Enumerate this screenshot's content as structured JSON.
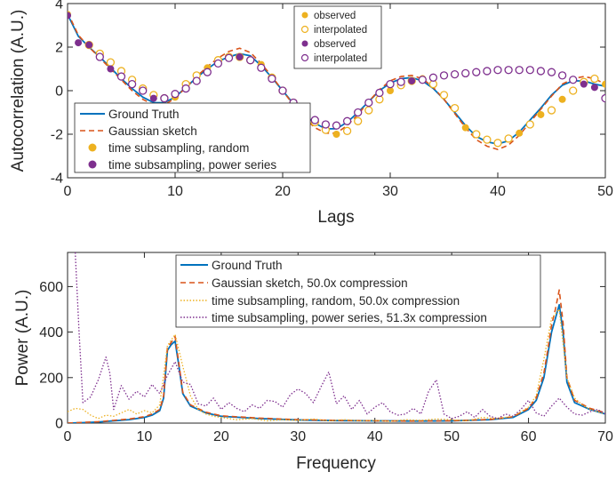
{
  "colors": {
    "ground_truth": "#0072BD",
    "gaussian": "#D95319",
    "random": "#EDB120",
    "power": "#7E2F8E"
  },
  "chart_data": [
    {
      "type": "line",
      "xlabel": "Lags",
      "ylabel": "Autocorrelation (A.U.)",
      "xlim": [
        0,
        50
      ],
      "ylim": [
        -4,
        4
      ],
      "xticks": [
        "0",
        "10",
        "20",
        "30",
        "40",
        "50"
      ],
      "yticks": [
        "-4",
        "-2",
        "0",
        "2",
        "4"
      ],
      "legend_main": {
        "placement": "bottom-left",
        "entries": [
          "Ground Truth",
          "Gaussian sketch",
          "time subsampling, random",
          "time subsampling, power series"
        ]
      },
      "legend_points": {
        "placement": "top-center",
        "entries": [
          "observed",
          "interpolated",
          "observed",
          "interpolated"
        ]
      },
      "series": [
        {
          "name": "Ground Truth",
          "style": "solid",
          "x": [
            0,
            1,
            2,
            3,
            4,
            5,
            6,
            7,
            8,
            9,
            10,
            11,
            12,
            13,
            14,
            15,
            16,
            17,
            18,
            19,
            20,
            21,
            22,
            23,
            24,
            25,
            26,
            27,
            28,
            29,
            30,
            31,
            32,
            33,
            34,
            35,
            36,
            37,
            38,
            39,
            40,
            41,
            42,
            43,
            44,
            45,
            46,
            47,
            48,
            49,
            50
          ],
          "y": [
            3.5,
            2.5,
            2.0,
            1.55,
            1.05,
            0.55,
            0.1,
            -0.3,
            -0.55,
            -0.55,
            -0.3,
            0.15,
            0.6,
            1.0,
            1.35,
            1.55,
            1.7,
            1.6,
            1.15,
            0.6,
            0.0,
            -0.6,
            -1.1,
            -1.5,
            -1.75,
            -1.75,
            -1.45,
            -1.0,
            -0.5,
            0.0,
            0.35,
            0.55,
            0.6,
            0.45,
            0.1,
            -0.4,
            -1.0,
            -1.6,
            -2.1,
            -2.35,
            -2.45,
            -2.3,
            -1.9,
            -1.35,
            -0.8,
            -0.2,
            0.25,
            0.45,
            0.45,
            0.3,
            0.2
          ]
        },
        {
          "name": "Gaussian sketch",
          "style": "dashed",
          "x": [
            0,
            1,
            2,
            3,
            4,
            5,
            6,
            7,
            8,
            9,
            10,
            11,
            12,
            13,
            14,
            15,
            16,
            17,
            18,
            19,
            20,
            21,
            22,
            23,
            24,
            25,
            26,
            27,
            28,
            29,
            30,
            31,
            32,
            33,
            34,
            35,
            36,
            37,
            38,
            39,
            40,
            41,
            42,
            43,
            44,
            45,
            46,
            47,
            48,
            49,
            50
          ],
          "y": [
            3.6,
            2.55,
            2.0,
            1.5,
            1.0,
            0.5,
            0.0,
            -0.4,
            -0.65,
            -0.65,
            -0.35,
            0.15,
            0.65,
            1.1,
            1.5,
            1.8,
            1.95,
            1.75,
            1.25,
            0.65,
            0.0,
            -0.65,
            -1.25,
            -1.7,
            -1.95,
            -1.95,
            -1.6,
            -1.1,
            -0.5,
            0.05,
            0.45,
            0.65,
            0.7,
            0.55,
            0.15,
            -0.4,
            -1.05,
            -1.7,
            -2.25,
            -2.55,
            -2.7,
            -2.5,
            -2.05,
            -1.45,
            -0.85,
            -0.25,
            0.3,
            0.55,
            0.65,
            0.55,
            0.3
          ]
        },
        {
          "name": "time subsampling, random",
          "marker": "observed",
          "x": [
            0,
            10,
            13,
            18,
            25,
            30,
            33,
            37,
            42,
            44,
            46,
            50
          ],
          "y": [
            3.5,
            -0.3,
            1.05,
            1.2,
            -2.0,
            0.0,
            0.55,
            -1.7,
            -1.95,
            -1.1,
            -0.4,
            0.3
          ]
        },
        {
          "name": "time subsampling, random",
          "marker": "interpolated",
          "x": [
            2,
            3,
            4,
            5,
            6,
            7,
            8,
            9,
            11,
            12,
            14,
            15,
            16,
            17,
            19,
            20,
            21,
            22,
            23,
            24,
            26,
            27,
            28,
            29,
            31,
            32,
            34,
            35,
            36,
            38,
            39,
            40,
            41,
            43,
            45,
            47,
            48,
            49
          ],
          "y": [
            2.1,
            1.7,
            1.3,
            0.9,
            0.5,
            0.1,
            -0.2,
            -0.35,
            0.3,
            0.7,
            1.4,
            1.55,
            1.55,
            1.4,
            0.6,
            0.0,
            -0.55,
            -1.05,
            -1.45,
            -1.8,
            -1.85,
            -1.4,
            -0.9,
            -0.4,
            0.25,
            0.45,
            0.3,
            -0.2,
            -0.8,
            -2.0,
            -2.25,
            -2.4,
            -2.2,
            -1.55,
            -0.9,
            0.0,
            0.4,
            0.55
          ]
        },
        {
          "name": "time subsampling, power series",
          "marker": "observed",
          "x": [
            0,
            1,
            2,
            4,
            8,
            16,
            32,
            48,
            49
          ],
          "y": [
            3.45,
            2.2,
            2.1,
            1.0,
            -0.35,
            1.55,
            0.45,
            0.3,
            0.15
          ]
        },
        {
          "name": "time subsampling, power series",
          "marker": "interpolated",
          "x": [
            3,
            5,
            6,
            7,
            9,
            10,
            11,
            12,
            13,
            14,
            15,
            17,
            18,
            19,
            20,
            21,
            22,
            23,
            24,
            25,
            26,
            27,
            28,
            29,
            30,
            31,
            33,
            34,
            35,
            36,
            37,
            38,
            39,
            40,
            41,
            42,
            43,
            44,
            45,
            46,
            47,
            50
          ],
          "y": [
            1.55,
            0.65,
            0.3,
            0.0,
            -0.35,
            -0.15,
            0.1,
            0.45,
            0.85,
            1.25,
            1.5,
            1.4,
            1.05,
            0.55,
            0.0,
            -0.55,
            -1.0,
            -1.35,
            -1.55,
            -1.6,
            -1.4,
            -1.0,
            -0.55,
            -0.1,
            0.3,
            0.4,
            0.5,
            0.6,
            0.7,
            0.75,
            0.8,
            0.85,
            0.9,
            0.95,
            0.95,
            0.95,
            0.95,
            0.9,
            0.85,
            0.7,
            0.5,
            -0.35
          ]
        }
      ]
    },
    {
      "type": "line",
      "xlabel": "Frequency",
      "ylabel": "Power (A.U.)",
      "xlim": [
        0,
        70
      ],
      "ylim": [
        0,
        750
      ],
      "xticks": [
        "0",
        "10",
        "20",
        "30",
        "40",
        "50",
        "60",
        "70"
      ],
      "yticks": [
        "0",
        "200",
        "400",
        "600"
      ],
      "legend": {
        "placement": "top-right",
        "entries": [
          "Ground Truth",
          "Gaussian sketch, 50.0x compression",
          "time subsampling, random, 50.0x compression",
          "time subsampling, power series, 51.3x compression"
        ]
      },
      "series": [
        {
          "name": "Ground Truth",
          "style": "solid",
          "x": [
            0,
            2,
            4,
            6,
            8,
            10,
            11,
            12,
            12.5,
            13,
            13.5,
            14,
            14.5,
            15,
            16,
            18,
            20,
            25,
            30,
            35,
            40,
            45,
            50,
            55,
            58,
            60,
            61,
            62,
            62.5,
            63,
            63.5,
            64,
            64.5,
            65,
            66,
            68,
            70
          ],
          "y": [
            0,
            2,
            5,
            10,
            15,
            25,
            35,
            55,
            110,
            320,
            345,
            360,
            250,
            130,
            75,
            45,
            30,
            20,
            14,
            11,
            10,
            9,
            10,
            15,
            25,
            60,
            100,
            200,
            300,
            400,
            460,
            520,
            400,
            180,
            90,
            60,
            40
          ]
        },
        {
          "name": "Gaussian sketch, 50.0x compression",
          "style": "dashed",
          "x": [
            0,
            2,
            4,
            6,
            8,
            10,
            11,
            12,
            12.5,
            13,
            13.5,
            14,
            14.5,
            15,
            16,
            18,
            20,
            25,
            30,
            35,
            40,
            45,
            50,
            55,
            58,
            60,
            61,
            62,
            62.5,
            63,
            63.5,
            64,
            64.5,
            65,
            66,
            68,
            70
          ],
          "y": [
            0,
            3,
            6,
            12,
            18,
            28,
            40,
            60,
            120,
            330,
            355,
            380,
            260,
            135,
            80,
            48,
            32,
            22,
            15,
            12,
            10,
            9,
            10,
            16,
            28,
            65,
            110,
            220,
            320,
            430,
            500,
            585,
            440,
            200,
            100,
            65,
            45
          ]
        },
        {
          "name": "time subsampling, random, 50.0x compression",
          "style": "dotted",
          "x": [
            0,
            1,
            2,
            3,
            4,
            5,
            6,
            7,
            8,
            9,
            10,
            11,
            12,
            13,
            14,
            15,
            16,
            17,
            18,
            19,
            20,
            22,
            24,
            26,
            28,
            30,
            32,
            34,
            36,
            38,
            40,
            42,
            44,
            46,
            48,
            50,
            52,
            54,
            56,
            58,
            60,
            61,
            62,
            63,
            64,
            65,
            66,
            67,
            68,
            69,
            70
          ],
          "y": [
            50,
            65,
            60,
            35,
            20,
            35,
            30,
            45,
            60,
            40,
            55,
            45,
            80,
            340,
            390,
            250,
            120,
            60,
            40,
            30,
            25,
            15,
            20,
            10,
            15,
            12,
            18,
            10,
            15,
            10,
            12,
            8,
            15,
            12,
            18,
            15,
            10,
            25,
            20,
            30,
            70,
            120,
            280,
            460,
            500,
            200,
            110,
            80,
            60,
            50,
            40
          ]
        },
        {
          "name": "time subsampling, power series, 51.3x compression",
          "style": "dotted",
          "x": [
            1,
            1.5,
            2,
            3,
            4,
            5,
            5.5,
            6,
            7,
            8,
            9,
            10,
            11,
            12,
            13,
            14,
            15,
            16,
            17,
            18,
            19,
            20,
            21,
            22,
            23,
            24,
            25,
            26,
            27,
            28,
            29,
            30,
            31,
            32,
            33,
            34,
            35,
            36,
            37,
            38,
            39,
            40,
            41,
            42,
            43,
            44,
            45,
            46,
            47,
            48,
            49,
            50,
            51,
            52,
            53,
            54,
            55,
            56,
            57,
            58,
            59,
            60,
            61,
            62,
            63,
            64,
            65,
            66,
            67,
            68,
            69,
            70
          ],
          "y": [
            750,
            400,
            90,
            115,
            190,
            290,
            220,
            60,
            165,
            105,
            140,
            115,
            170,
            130,
            210,
            270,
            180,
            170,
            85,
            75,
            110,
            60,
            90,
            65,
            50,
            80,
            65,
            100,
            95,
            70,
            125,
            150,
            130,
            90,
            160,
            225,
            85,
            120,
            60,
            100,
            40,
            70,
            90,
            50,
            35,
            40,
            65,
            40,
            140,
            190,
            40,
            20,
            30,
            50,
            25,
            60,
            30,
            20,
            40,
            30,
            60,
            100,
            45,
            30,
            75,
            110,
            70,
            40,
            35,
            50,
            60,
            40
          ]
        }
      ]
    }
  ]
}
